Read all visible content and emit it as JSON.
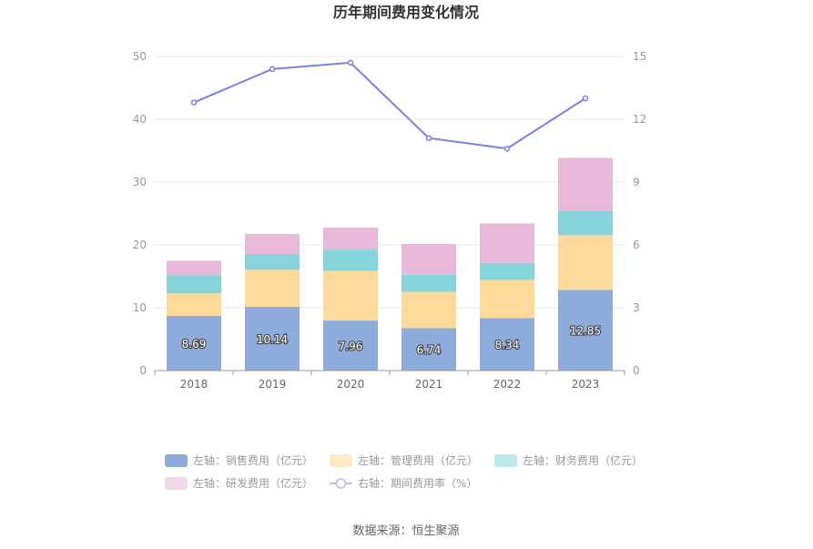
{
  "chart_data": {
    "type": "bar",
    "stacked": true,
    "title": "历年期间费用变化情况",
    "categories": [
      "2018",
      "2019",
      "2020",
      "2021",
      "2022",
      "2023"
    ],
    "left_axis": {
      "min": 0,
      "max": 50,
      "ticks": [
        "0",
        "10",
        "20",
        "30",
        "40",
        "50"
      ]
    },
    "right_axis": {
      "min": 0,
      "max": 15,
      "ticks": [
        "0",
        "3",
        "6",
        "9",
        "12",
        "15"
      ]
    },
    "series": [
      {
        "name": "左轴：销售费用（亿元）",
        "axis": "left",
        "color": "#8dabdb",
        "values": [
          8.69,
          10.14,
          7.96,
          6.74,
          8.34,
          12.85
        ],
        "labels": [
          "8.69",
          "10.14",
          "7.96",
          "6.74",
          "8.34",
          "12.85"
        ]
      },
      {
        "name": "左轴：管理费用（亿元）",
        "axis": "left",
        "color": "#fdd99a",
        "values": [
          3.6,
          5.9,
          7.9,
          5.8,
          6.1,
          8.7
        ]
      },
      {
        "name": "左轴：财务费用（亿元）",
        "axis": "left",
        "color": "#86d5da",
        "values": [
          2.9,
          2.5,
          3.4,
          2.7,
          2.7,
          3.9
        ]
      },
      {
        "name": "左轴：研发费用（亿元）",
        "axis": "left",
        "color": "#e8b9d9",
        "values": [
          2.3,
          3.2,
          3.5,
          4.9,
          6.3,
          8.4
        ]
      },
      {
        "name": "右轴：期间费用率（%）",
        "axis": "right",
        "type": "line",
        "color": "#7b7ee6",
        "values": [
          12.8,
          14.4,
          14.7,
          11.1,
          10.6,
          13.0
        ]
      }
    ],
    "legend_position": "bottom"
  },
  "footer": {
    "source": "数据来源：恒生聚源"
  }
}
